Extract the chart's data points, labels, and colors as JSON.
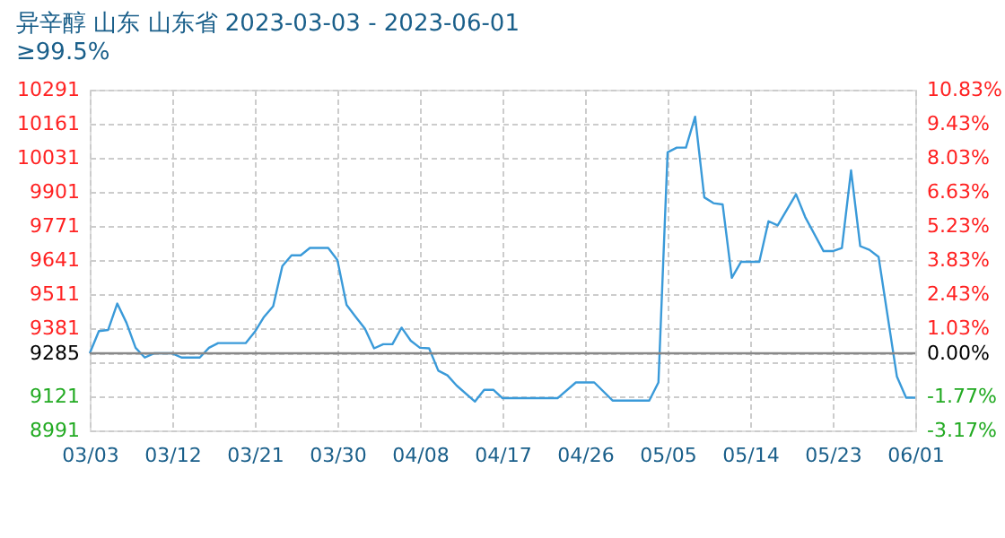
{
  "chart_data": {
    "type": "line",
    "title": "异辛醇 山东 山东省 2023-03-03 - 2023-06-01",
    "subtitle": "≥99.5%",
    "x": [
      "2023-03-03",
      "2023-03-04",
      "2023-03-05",
      "2023-03-06",
      "2023-03-07",
      "2023-03-08",
      "2023-03-09",
      "2023-03-10",
      "2023-03-12",
      "2023-03-13",
      "2023-03-15",
      "2023-03-16",
      "2023-03-17",
      "2023-03-20",
      "2023-03-21",
      "2023-03-22",
      "2023-03-23",
      "2023-03-24",
      "2023-03-25",
      "2023-03-26",
      "2023-03-27",
      "2023-03-29",
      "2023-03-30",
      "2023-03-31",
      "2023-04-01",
      "2023-04-02",
      "2023-04-03",
      "2023-04-04",
      "2023-04-05",
      "2023-04-06",
      "2023-04-07",
      "2023-04-08",
      "2023-04-09",
      "2023-04-10",
      "2023-04-11",
      "2023-04-12",
      "2023-04-14",
      "2023-04-15",
      "2023-04-16",
      "2023-04-17",
      "2023-04-23",
      "2023-04-25",
      "2023-04-27",
      "2023-04-29",
      "2023-05-03",
      "2023-05-04",
      "2023-05-05",
      "2023-05-06",
      "2023-05-07",
      "2023-05-08",
      "2023-05-09",
      "2023-05-10",
      "2023-05-11",
      "2023-05-12",
      "2023-05-13",
      "2023-05-15",
      "2023-05-16",
      "2023-05-17",
      "2023-05-19",
      "2023-05-20",
      "2023-05-22",
      "2023-05-23",
      "2023-05-24",
      "2023-05-25",
      "2023-05-26",
      "2023-05-27",
      "2023-05-28",
      "2023-05-30",
      "2023-05-31",
      "2023-06-01"
    ],
    "series": [
      {
        "color": "#3a9ad9",
        "values": [
          9285,
          9370,
          9374,
          9475,
          9402,
          9306,
          9269,
          9285,
          9285,
          9269,
          9269,
          9306,
          9324,
          9324,
          9367,
          9424,
          9465,
          9618,
          9659,
          9659,
          9687,
          9687,
          9641,
          9470,
          9424,
          9379,
          9304,
          9320,
          9320,
          9383,
          9333,
          9306,
          9304,
          9219,
          9201,
          9162,
          9101,
          9146,
          9146,
          9114,
          9114,
          9174,
          9174,
          9105,
          9105,
          9174,
          10052,
          10070,
          10070,
          10188,
          9880,
          9858,
          9853,
          9573,
          9634,
          9634,
          9789,
          9773,
          9892,
          9805,
          9675,
          9675,
          9687,
          9983,
          9694,
          9680,
          9653,
          9196,
          9116,
          9116
        ]
      }
    ],
    "xlim": [
      "2023-03-03",
      "2023-06-01"
    ],
    "xticks": [
      {
        "value": "2023-03-03",
        "label": "03/03"
      },
      {
        "value": "2023-03-12",
        "label": "03/12"
      },
      {
        "value": "2023-03-21",
        "label": "03/21"
      },
      {
        "value": "2023-03-30",
        "label": "03/30"
      },
      {
        "value": "2023-04-08",
        "label": "04/08"
      },
      {
        "value": "2023-04-17",
        "label": "04/17"
      },
      {
        "value": "2023-04-26",
        "label": "04/26"
      },
      {
        "value": "2023-05-05",
        "label": "05/05"
      },
      {
        "value": "2023-05-14",
        "label": "05/14"
      },
      {
        "value": "2023-05-23",
        "label": "05/23"
      },
      {
        "value": "2023-06-01",
        "label": "06/01"
      }
    ],
    "ylim": [
      8991,
      10291
    ],
    "yticks": [
      8991,
      9121,
      {
        "value": 9251,
        "label": null
      },
      9285,
      9381,
      9511,
      9641,
      9771,
      9901,
      10031,
      10161,
      10291
    ],
    "y2lim": [
      -3.17,
      10.83
    ],
    "y2ticks": [
      {
        "value": -3.17,
        "label": "-3.17%"
      },
      {
        "value": -1.77,
        "label": "-1.77%"
      },
      {
        "value": 0,
        "label": "0.00%"
      },
      {
        "value": 1.03,
        "label": "1.03%"
      },
      {
        "value": 2.43,
        "label": "2.43%"
      },
      {
        "value": 3.83,
        "label": "3.83%"
      },
      {
        "value": 5.23,
        "label": "5.23%"
      },
      {
        "value": 6.63,
        "label": "6.63%"
      },
      {
        "value": 8.03,
        "label": "8.03%"
      },
      {
        "value": 9.43,
        "label": "9.43%"
      },
      {
        "value": 10.83,
        "label": "10.83%"
      }
    ],
    "ref_lines": [
      {
        "axis": "y",
        "value": 9285,
        "color": "#888888"
      }
    ],
    "grid": true,
    "legend": false,
    "marker": "none",
    "line_style": "solid"
  }
}
